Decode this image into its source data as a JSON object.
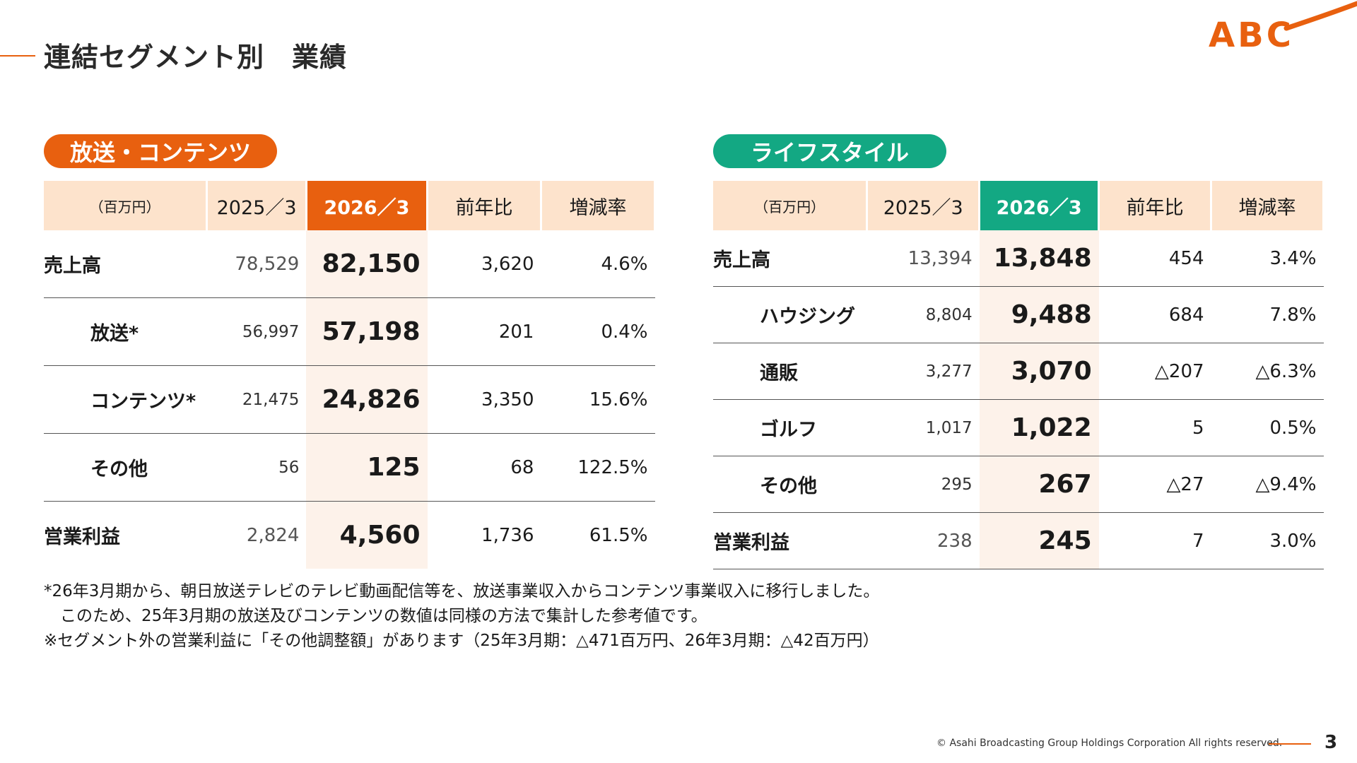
{
  "page": {
    "title": "連結セグメント別　業績",
    "logo_text": "ABC",
    "footer": "© Asahi Broadcasting Group Holdings Corporation All rights reserved.",
    "page_number": "3",
    "accent_color": "#e8600f",
    "accent_color_2": "#13a883"
  },
  "left": {
    "segment_label": "放送・コンテンツ",
    "headers": [
      "（百万円）",
      "2025／3",
      "2026／3",
      "前年比",
      "増減率"
    ],
    "rows": [
      {
        "label": "売上高",
        "prev": "78,529",
        "cur": "82,150",
        "diff": "3,620",
        "rate": "4.6%"
      },
      {
        "label": "放送*",
        "prev": "56,997",
        "cur": "57,198",
        "diff": "201",
        "rate": "0.4%"
      },
      {
        "label": "コンテンツ*",
        "prev": "21,475",
        "cur": "24,826",
        "diff": "3,350",
        "rate": "15.6%"
      },
      {
        "label": "その他",
        "prev": "56",
        "cur": "125",
        "diff": "68",
        "rate": "122.5%"
      },
      {
        "label": "営業利益",
        "prev": "2,824",
        "cur": "4,560",
        "diff": "1,736",
        "rate": "61.5%"
      }
    ]
  },
  "right": {
    "segment_label": "ライフスタイル",
    "headers": [
      "（百万円）",
      "2025／3",
      "2026／3",
      "前年比",
      "増減率"
    ],
    "rows": [
      {
        "label": "売上高",
        "prev": "13,394",
        "cur": "13,848",
        "diff": "454",
        "rate": "3.4%"
      },
      {
        "label": "ハウジング",
        "prev": "8,804",
        "cur": "9,488",
        "diff": "684",
        "rate": "7.8%"
      },
      {
        "label": "通販",
        "prev": "3,277",
        "cur": "3,070",
        "diff": "△207",
        "rate": "△6.3%"
      },
      {
        "label": "ゴルフ",
        "prev": "1,017",
        "cur": "1,022",
        "diff": "5",
        "rate": "0.5%"
      },
      {
        "label": "その他",
        "prev": "295",
        "cur": "267",
        "diff": "△27",
        "rate": "△9.4%"
      },
      {
        "label": "営業利益",
        "prev": "238",
        "cur": "245",
        "diff": "7",
        "rate": "3.0%"
      }
    ]
  },
  "notes": [
    "*26年3月期から、朝日放送テレビのテレビ動画配信等を、放送事業収入からコンテンツ事業収入に移行しました。",
    "　このため、25年3月期の放送及びコンテンツの数値は同様の方法で集計した参考値です。",
    "※セグメント外の営業利益に「その他調整額」があります（25年3月期：△471百万円、26年3月期：△42百万円）"
  ]
}
